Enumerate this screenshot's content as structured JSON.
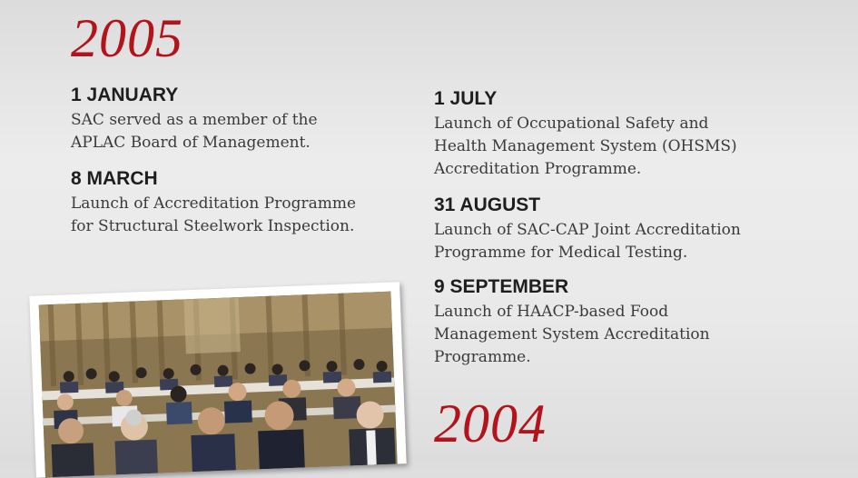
{
  "years": {
    "primary": "2005",
    "secondary": "2004"
  },
  "entries": [
    {
      "date": "1 JANUARY",
      "desc": "SAC served as a member of the\nAPLAC Board of Management."
    },
    {
      "date": "8 MARCH",
      "desc": "Launch of Accreditation Programme\nfor Structural Steelwork Inspection."
    },
    {
      "date": "1 JULY",
      "desc": "Launch of Occupational Safety and\nHealth Management System (OHSMS)\nAccreditation Programme."
    },
    {
      "date": "31 AUGUST",
      "desc": "Launch of SAC-CAP Joint Accreditation\nProgramme for Medical Testing."
    },
    {
      "date": "9 SEPTEMBER",
      "desc": "Launch of HAACP-based Food\nManagement System Accreditation\nProgramme."
    }
  ],
  "colors": {
    "year": "#b3141b",
    "date": "#1e1e1e",
    "text": "#3a3a3a"
  }
}
